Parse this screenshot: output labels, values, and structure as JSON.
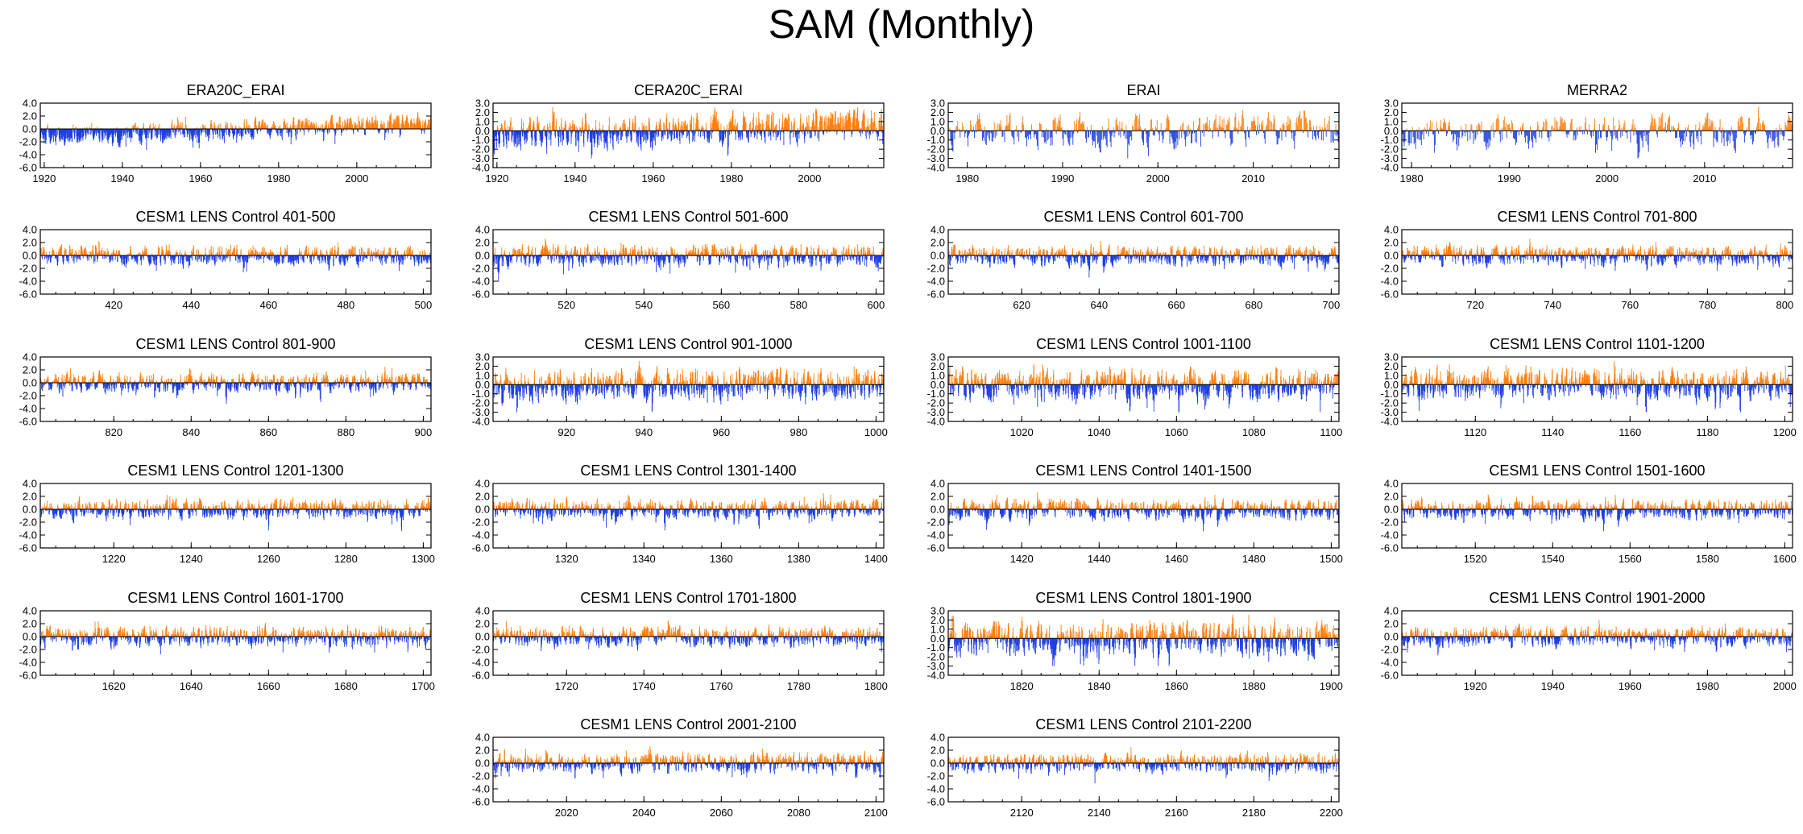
{
  "title": "SAM (Monthly)",
  "colors": {
    "positive": "#ff7f0e",
    "negative": "#1f3fe0",
    "frame": "#000000"
  },
  "chart_data": [
    {
      "type": "bar",
      "title": "ERA20C_ERAI",
      "x_range": [
        1919,
        2019
      ],
      "ylim": [
        -6,
        4
      ],
      "yticks": [
        "4.0",
        "2.0",
        "0.0",
        "-2.0",
        "-4.0",
        "-6.0"
      ],
      "xticks": [
        1920,
        1940,
        1960,
        1980,
        2000
      ],
      "trend": [
        -1.2,
        1.0
      ],
      "amp": 1.0,
      "seed": 11
    },
    {
      "type": "bar",
      "title": "CERA20C_ERAI",
      "x_range": [
        1919,
        2019
      ],
      "ylim": [
        -4,
        3
      ],
      "yticks": [
        "3.0",
        "2.0",
        "1.0",
        "0.0",
        "-1.0",
        "-2.0",
        "-3.0",
        "-4.0"
      ],
      "xticks": [
        1920,
        1940,
        1960,
        1980,
        2000
      ],
      "trend": [
        -0.4,
        0.7
      ],
      "amp": 1.1,
      "seed": 12
    },
    {
      "type": "bar",
      "title": "ERAI",
      "x_range": [
        1978,
        2019
      ],
      "ylim": [
        -4,
        3
      ],
      "yticks": [
        "3.0",
        "2.0",
        "1.0",
        "0.0",
        "-1.0",
        "-2.0",
        "-3.0",
        "-4.0"
      ],
      "xticks": [
        1980,
        1990,
        2000,
        2010
      ],
      "trend": [
        0,
        0
      ],
      "amp": 1.2,
      "seed": 13
    },
    {
      "type": "bar",
      "title": "MERRA2",
      "x_range": [
        1979,
        2019
      ],
      "ylim": [
        -4,
        3
      ],
      "yticks": [
        "3.0",
        "2.0",
        "1.0",
        "0.0",
        "-1.0",
        "-2.0",
        "-3.0",
        "-4.0"
      ],
      "xticks": [
        1980,
        1990,
        2000,
        2010
      ],
      "trend": [
        0,
        0
      ],
      "amp": 1.2,
      "seed": 14
    },
    {
      "type": "bar",
      "title": "CESM1 LENS Control 401-500",
      "x_range": [
        401,
        502
      ],
      "ylim": [
        -6,
        4
      ],
      "yticks": [
        "4.0",
        "2.0",
        "0.0",
        "-2.0",
        "-4.0",
        "-6.0"
      ],
      "xticks": [
        420,
        440,
        460,
        480,
        500
      ],
      "trend": [
        0,
        0
      ],
      "amp": 1.0,
      "seed": 21
    },
    {
      "type": "bar",
      "title": "CESM1 LENS Control 501-600",
      "x_range": [
        501,
        602
      ],
      "ylim": [
        -6,
        4
      ],
      "yticks": [
        "4.0",
        "2.0",
        "0.0",
        "-2.0",
        "-4.0",
        "-6.0"
      ],
      "xticks": [
        520,
        540,
        560,
        580,
        600
      ],
      "trend": [
        0,
        0
      ],
      "amp": 1.1,
      "seed": 22
    },
    {
      "type": "bar",
      "title": "CESM1 LENS Control 601-700",
      "x_range": [
        601,
        702
      ],
      "ylim": [
        -6,
        4
      ],
      "yticks": [
        "4.0",
        "2.0",
        "0.0",
        "-2.0",
        "-4.0",
        "-6.0"
      ],
      "xticks": [
        620,
        640,
        660,
        680,
        700
      ],
      "trend": [
        0,
        0
      ],
      "amp": 1.0,
      "seed": 23
    },
    {
      "type": "bar",
      "title": "CESM1 LENS Control 701-800",
      "x_range": [
        701,
        802
      ],
      "ylim": [
        -6,
        4
      ],
      "yticks": [
        "4.0",
        "2.0",
        "0.0",
        "-2.0",
        "-4.0",
        "-6.0"
      ],
      "xticks": [
        720,
        740,
        760,
        780,
        800
      ],
      "trend": [
        0,
        0
      ],
      "amp": 1.0,
      "seed": 24
    },
    {
      "type": "bar",
      "title": "CESM1 LENS Control 801-900",
      "x_range": [
        801,
        902
      ],
      "ylim": [
        -6,
        4
      ],
      "yticks": [
        "4.0",
        "2.0",
        "0.0",
        "-2.0",
        "-4.0",
        "-6.0"
      ],
      "xticks": [
        820,
        840,
        860,
        880,
        900
      ],
      "trend": [
        0,
        0
      ],
      "amp": 1.0,
      "seed": 31
    },
    {
      "type": "bar",
      "title": "CESM1 LENS Control 901-1000",
      "x_range": [
        901,
        1002
      ],
      "ylim": [
        -4,
        3
      ],
      "yticks": [
        "3.0",
        "2.0",
        "1.0",
        "0.0",
        "-1.0",
        "-2.0",
        "-3.0",
        "-4.0"
      ],
      "xticks": [
        920,
        940,
        960,
        980,
        1000
      ],
      "trend": [
        0,
        0
      ],
      "amp": 1.1,
      "seed": 32
    },
    {
      "type": "bar",
      "title": "CESM1 LENS Control 1001-1100",
      "x_range": [
        1001,
        1102
      ],
      "ylim": [
        -4,
        3
      ],
      "yticks": [
        "3.0",
        "2.0",
        "1.0",
        "0.0",
        "-1.0",
        "-2.0",
        "-3.0",
        "-4.0"
      ],
      "xticks": [
        1020,
        1040,
        1060,
        1080,
        1100
      ],
      "trend": [
        0,
        0
      ],
      "amp": 1.1,
      "seed": 33
    },
    {
      "type": "bar",
      "title": "CESM1 LENS Control 1101-1200",
      "x_range": [
        1101,
        1202
      ],
      "ylim": [
        -4,
        3
      ],
      "yticks": [
        "3.0",
        "2.0",
        "1.0",
        "0.0",
        "-1.0",
        "-2.0",
        "-3.0",
        "-4.0"
      ],
      "xticks": [
        1120,
        1140,
        1160,
        1180,
        1200
      ],
      "trend": [
        0,
        0
      ],
      "amp": 1.1,
      "seed": 34
    },
    {
      "type": "bar",
      "title": "CESM1 LENS Control 1201-1300",
      "x_range": [
        1201,
        1302
      ],
      "ylim": [
        -6,
        4
      ],
      "yticks": [
        "4.0",
        "2.0",
        "0.0",
        "-2.0",
        "-4.0",
        "-6.0"
      ],
      "xticks": [
        1220,
        1240,
        1260,
        1280,
        1300
      ],
      "trend": [
        0,
        0
      ],
      "amp": 1.0,
      "seed": 41
    },
    {
      "type": "bar",
      "title": "CESM1 LENS Control 1301-1400",
      "x_range": [
        1301,
        1402
      ],
      "ylim": [
        -6,
        4
      ],
      "yticks": [
        "4.0",
        "2.0",
        "0.0",
        "-2.0",
        "-4.0",
        "-6.0"
      ],
      "xticks": [
        1320,
        1340,
        1360,
        1380,
        1400
      ],
      "trend": [
        0,
        0
      ],
      "amp": 1.0,
      "seed": 42
    },
    {
      "type": "bar",
      "title": "CESM1 LENS Control 1401-1500",
      "x_range": [
        1401,
        1502
      ],
      "ylim": [
        -6,
        4
      ],
      "yticks": [
        "4.0",
        "2.0",
        "0.0",
        "-2.0",
        "-4.0",
        "-6.0"
      ],
      "xticks": [
        1420,
        1440,
        1460,
        1480,
        1500
      ],
      "trend": [
        0,
        0
      ],
      "amp": 1.0,
      "seed": 43
    },
    {
      "type": "bar",
      "title": "CESM1 LENS Control 1501-1600",
      "x_range": [
        1501,
        1602
      ],
      "ylim": [
        -6,
        4
      ],
      "yticks": [
        "4.0",
        "2.0",
        "0.0",
        "-2.0",
        "-4.0",
        "-6.0"
      ],
      "xticks": [
        1520,
        1540,
        1560,
        1580,
        1600
      ],
      "trend": [
        0,
        0
      ],
      "amp": 1.0,
      "seed": 44
    },
    {
      "type": "bar",
      "title": "CESM1 LENS Control 1601-1700",
      "x_range": [
        1601,
        1702
      ],
      "ylim": [
        -6,
        4
      ],
      "yticks": [
        "4.0",
        "2.0",
        "0.0",
        "-2.0",
        "-4.0",
        "-6.0"
      ],
      "xticks": [
        1620,
        1640,
        1660,
        1680,
        1700
      ],
      "trend": [
        0,
        0
      ],
      "amp": 1.0,
      "seed": 51
    },
    {
      "type": "bar",
      "title": "CESM1 LENS Control 1701-1800",
      "x_range": [
        1701,
        1802
      ],
      "ylim": [
        -6,
        4
      ],
      "yticks": [
        "4.0",
        "2.0",
        "0.0",
        "-2.0",
        "-4.0",
        "-6.0"
      ],
      "xticks": [
        1720,
        1740,
        1760,
        1780,
        1800
      ],
      "trend": [
        0,
        0
      ],
      "amp": 1.0,
      "seed": 52
    },
    {
      "type": "bar",
      "title": "CESM1 LENS Control 1801-1900",
      "x_range": [
        1801,
        1902
      ],
      "ylim": [
        -4,
        3
      ],
      "yticks": [
        "3.0",
        "2.0",
        "1.0",
        "0.0",
        "-1.0",
        "-2.0",
        "-3.0",
        "-4.0"
      ],
      "xticks": [
        1820,
        1840,
        1860,
        1880,
        1900
      ],
      "trend": [
        0,
        0
      ],
      "amp": 1.2,
      "seed": 53
    },
    {
      "type": "bar",
      "title": "CESM1 LENS Control 1901-2000",
      "x_range": [
        1901,
        2002
      ],
      "ylim": [
        -6,
        4
      ],
      "yticks": [
        "4.0",
        "2.0",
        "0.0",
        "-2.0",
        "-4.0",
        "-6.0"
      ],
      "xticks": [
        1920,
        1940,
        1960,
        1980,
        2000
      ],
      "trend": [
        0,
        0
      ],
      "amp": 1.0,
      "seed": 54
    },
    {
      "type": "bar",
      "title": "CESM1 LENS Control 2001-2100",
      "x_range": [
        2001,
        2102
      ],
      "ylim": [
        -6,
        4
      ],
      "yticks": [
        "4.0",
        "2.0",
        "0.0",
        "-2.0",
        "-4.0",
        "-6.0"
      ],
      "xticks": [
        2020,
        2040,
        2060,
        2080,
        2100
      ],
      "trend": [
        0,
        0
      ],
      "amp": 1.0,
      "seed": 62
    },
    {
      "type": "bar",
      "title": "CESM1 LENS Control 2101-2200",
      "x_range": [
        2101,
        2202
      ],
      "ylim": [
        -6,
        4
      ],
      "yticks": [
        "4.0",
        "2.0",
        "0.0",
        "-2.0",
        "-4.0",
        "-6.0"
      ],
      "xticks": [
        2120,
        2140,
        2160,
        2180,
        2200
      ],
      "trend": [
        0,
        0
      ],
      "amp": 1.0,
      "seed": 63
    }
  ]
}
